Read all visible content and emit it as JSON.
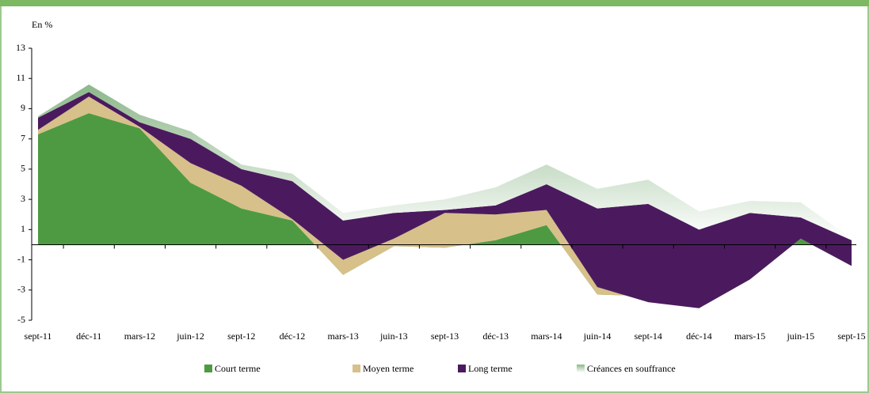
{
  "chart_data": {
    "type": "stacked_area",
    "y_label": "En %",
    "categories": [
      "sept-11",
      "déc-11",
      "mars-12",
      "juin-12",
      "sept-12",
      "déc-12",
      "mars-13",
      "juin-13",
      "sept-13",
      "déc-13",
      "mars-14",
      "juin-14",
      "sept-14",
      "déc-14",
      "mars-15",
      "juin-15",
      "sept-15"
    ],
    "series": [
      {
        "name": "Court terme",
        "color": "#4e9a43",
        "values": [
          7.3,
          8.7,
          7.7,
          4.1,
          2.4,
          1.6,
          -2,
          -0.1,
          -0.2,
          0.3,
          1.3,
          -3.3,
          -3.4,
          -4.2,
          -2.3,
          0.4,
          -1.4
        ]
      },
      {
        "name": "Moyen terme",
        "color": "#d7c08a",
        "values": [
          0.3,
          1.1,
          0.1,
          1.3,
          1.5,
          0.1,
          1,
          0.5,
          2.3,
          1.7,
          1.0,
          0.5,
          -0.4,
          0,
          0,
          0,
          0
        ]
      },
      {
        "name": "Long terme",
        "color": "#4b1a5e",
        "values": [
          0.8,
          0.3,
          0.3,
          1.6,
          1.1,
          2.5,
          2.6,
          1.7,
          0.2,
          0.6,
          1.7,
          5.2,
          6.5,
          5.2,
          4.4,
          1.4,
          1.7
        ]
      },
      {
        "name": "Créances en souffrance",
        "color": "#8cb88a",
        "gradient": true,
        "values": [
          0.1,
          0.5,
          0.5,
          0.5,
          0.3,
          0.5,
          0.5,
          0.5,
          0.7,
          1.2,
          1.3,
          1.3,
          1.6,
          1.2,
          0.8,
          1.0,
          0.1
        ]
      }
    ],
    "ylim": [
      -5,
      13
    ],
    "yticks": [
      -5,
      -3,
      -1,
      1,
      3,
      5,
      7,
      9,
      11,
      13
    ]
  }
}
